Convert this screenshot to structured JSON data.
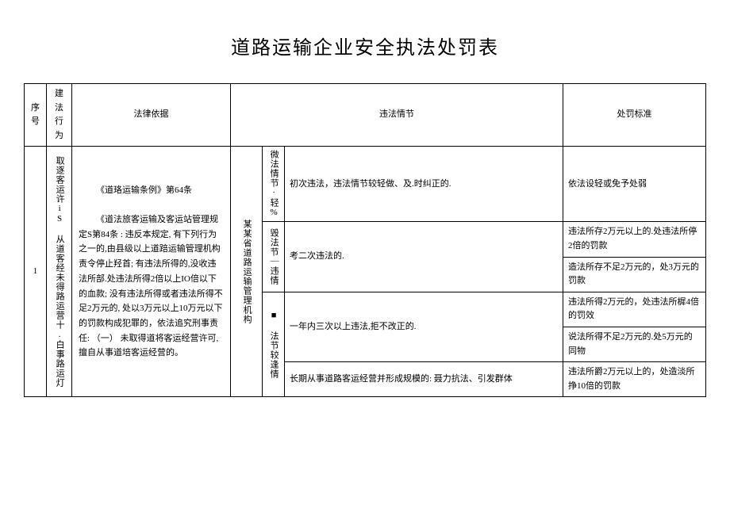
{
  "title": "道路运输企业安全执法处罚表",
  "headers": {
    "seq": "序号",
    "act": "建法行为",
    "law": "法律依据",
    "detail": "违法情节",
    "penalty": "处罚标准"
  },
  "row": {
    "seq": "1",
    "act": "取逐客运许iS 从道客经未得路运营十.白事路运灯",
    "law_title": "《道珞运输条例》第64条",
    "law_body": "《道法旅客运输及客运站管理规定S第84条 : 违反本规定, 有下列行为之一的,由县级以上道踣运输管理机构责令停止羟首; 有违法所得的,没收违法所部.处违法所得2倍以上IO倍以下的血款; 没有违法所得或者违法所得不足2万元的, 处以3万元以上10万元以下的罚款构成犯罪的，依法追究刑事责任: （一） 未取得道将客运经营许可, 擅自从事道培客运经营的。",
    "org": "某某省道路运输管理机构",
    "severity": {
      "s1": "微法情节·轻%",
      "s2": "毁法节｜违情",
      "s3": "■ 法节较逢情"
    },
    "details": {
      "d1": "初次违法，违法情节较轻做、及.时纠正的.",
      "d2": "考二次违法的.",
      "d3": "一年内三次以上违法,拒不改正的.",
      "d4": "长期从事道路客运经营并形成规模的:  聂力抗法、引发群体"
    },
    "penalties": {
      "p1": "依法设轻或免予处弱",
      "p2a": "违法所存2万元以上的.处违法所停2倍的罚款",
      "p2b": "造法所存不足2万元的，处3万元的罚款",
      "p3a": "违法所得2万元的，处违法所樨4倍的罚效",
      "p3b": "说法所得不足2万元的.处5万元的同物",
      "p4": "违法所爵2万元以上的，处造淡所挣10倍的罚款"
    }
  }
}
